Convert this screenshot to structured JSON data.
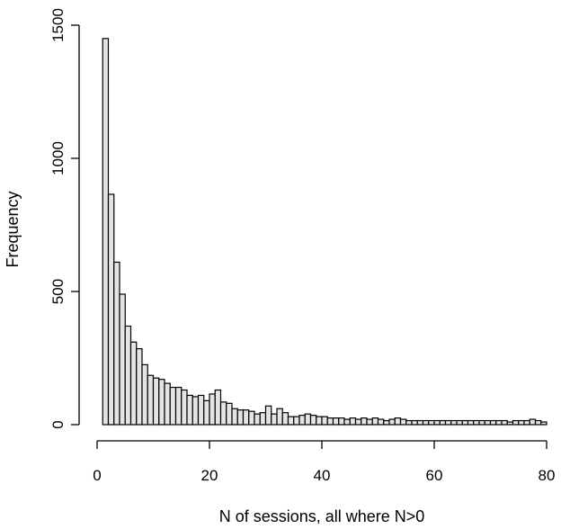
{
  "chart_data": {
    "type": "bar",
    "title": "",
    "xlabel": "N of sessions, all where N>0",
    "ylabel": "Frequency",
    "xlim": [
      0,
      80
    ],
    "ylim": [
      0,
      1500
    ],
    "x_ticks": [
      0,
      20,
      40,
      60,
      80
    ],
    "y_ticks": [
      0,
      500,
      1000,
      1500
    ],
    "x_tick_labels": [
      "0",
      "20",
      "40",
      "60",
      "80"
    ],
    "y_tick_labels": [
      "0",
      "500",
      "1000",
      "1500"
    ],
    "grid": false,
    "legend": "none",
    "bin_width": 1,
    "bin_start": 1,
    "colors": {
      "bar_fill": "#e4e4e4",
      "bar_stroke": "#000000"
    },
    "values": [
      1450,
      865,
      610,
      490,
      370,
      310,
      285,
      225,
      185,
      175,
      170,
      155,
      140,
      140,
      130,
      110,
      105,
      110,
      90,
      115,
      130,
      85,
      80,
      60,
      55,
      55,
      50,
      40,
      45,
      70,
      40,
      60,
      45,
      30,
      30,
      35,
      40,
      35,
      30,
      30,
      25,
      25,
      25,
      20,
      25,
      20,
      25,
      20,
      25,
      20,
      15,
      20,
      25,
      20,
      15,
      15,
      15,
      15,
      15,
      15,
      15,
      15,
      15,
      15,
      15,
      15,
      15,
      15,
      15,
      15,
      15,
      15,
      10,
      15,
      15,
      15,
      20,
      15,
      10
    ]
  }
}
